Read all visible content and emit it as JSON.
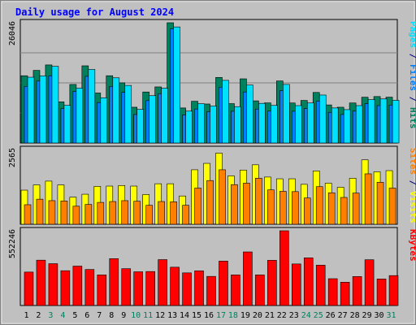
{
  "chart_data": {
    "type": "bar",
    "title": "Daily usage for August 2024",
    "categories": [
      "1",
      "2",
      "3",
      "4",
      "5",
      "6",
      "7",
      "8",
      "9",
      "10",
      "11",
      "12",
      "13",
      "14",
      "15",
      "16",
      "17",
      "18",
      "19",
      "20",
      "21",
      "22",
      "23",
      "24",
      "25",
      "26",
      "27",
      "28",
      "29",
      "30",
      "31"
    ],
    "weekend_days": [
      "3",
      "4",
      "10",
      "11",
      "17",
      "18",
      "24",
      "25",
      "31"
    ],
    "panels": [
      {
        "name": "hits-files-pages",
        "ymax_label": "26046",
        "ymax": 26046,
        "axis_label_parts": [
          {
            "text": "Pages",
            "color": "#00e0ff"
          },
          {
            "text": " / ",
            "color": "#000080"
          },
          {
            "text": "Files",
            "color": "#0080ff"
          },
          {
            "text": " / ",
            "color": "#000080"
          },
          {
            "text": "Hits",
            "color": "#00805c"
          }
        ],
        "series": [
          {
            "name": "Hits",
            "color": "#00805c",
            "values": [
              14570,
              15730,
              16910,
              8910,
              12680,
              16720,
              10830,
              14570,
              13030,
              7750,
              11050,
              12150,
              26046,
              7590,
              9040,
              8450,
              14200,
              8530,
              13900,
              9130,
              8690,
              13440,
              8670,
              9220,
              10950,
              8250,
              7750,
              8670,
              9920,
              10060,
              9930
            ]
          },
          {
            "name": "Files",
            "color": "#0080ff",
            "values": [
              12270,
              13420,
              14570,
              7450,
              11160,
              14440,
              8760,
              12250,
              10960,
              6180,
              9180,
              10680,
              24710,
              6080,
              7350,
              6750,
              12090,
              6880,
              11050,
              7350,
              6910,
              11340,
              6880,
              7450,
              9070,
              6610,
              6180,
              6910,
              8530,
              8100,
              8210
            ]
          },
          {
            "name": "Pages",
            "color": "#00e0ff",
            "values": [
              14250,
              14530,
              16610,
              8160,
              11880,
              15930,
              9800,
              14120,
              12470,
              7280,
              10250,
              11870,
              25140,
              6910,
              8510,
              8010,
              13570,
              7880,
              12560,
              8590,
              8140,
              12690,
              8100,
              8670,
              10390,
              7590,
              7230,
              8100,
              9380,
              9550,
              9240
            ]
          }
        ]
      },
      {
        "name": "visits-sites",
        "ymax_label": "2565",
        "ymax": 2565,
        "axis_label_parts": [
          {
            "text": "Sites",
            "color": "#ff8000"
          },
          {
            "text": " / ",
            "color": "#000080"
          },
          {
            "text": "Visits",
            "color": "#ffff00"
          }
        ],
        "series": [
          {
            "name": "Visits",
            "color": "#ffff00",
            "values": [
              1170,
              1350,
              1480,
              1350,
              930,
              1030,
              1300,
              1310,
              1330,
              1310,
              1020,
              1390,
              1390,
              970,
              1870,
              2090,
              2440,
              1660,
              1860,
              2040,
              1620,
              1560,
              1560,
              1370,
              1830,
              1410,
              1270,
              1580,
              2210,
              1800,
              1840
            ]
          },
          {
            "name": "Sites",
            "color": "#ff8000",
            "values": [
              670,
              860,
              810,
              800,
              620,
              680,
              750,
              780,
              810,
              790,
              650,
              780,
              770,
              650,
              1240,
              1500,
              1870,
              1360,
              1410,
              1580,
              1180,
              1130,
              1120,
              900,
              1290,
              1080,
              920,
              1070,
              1730,
              1440,
              1240
            ]
          }
        ]
      },
      {
        "name": "kbytes",
        "ymax_label": "552246",
        "ymax": 552246,
        "axis_label_parts": [
          {
            "text": "KBytes",
            "color": "#ff0000"
          }
        ],
        "series": [
          {
            "name": "KBytes",
            "color": "#ff0000",
            "values": [
              247000,
              335000,
              309000,
              257000,
              291000,
              266000,
              226000,
              346000,
              272000,
              249000,
              251000,
              339000,
              283000,
              241000,
              256000,
              215000,
              328000,
              226000,
              396000,
              226000,
              334000,
              552246,
              307000,
              352000,
              298000,
              198000,
              172000,
              214000,
              338000,
              196000,
              221000
            ]
          }
        ]
      }
    ]
  }
}
